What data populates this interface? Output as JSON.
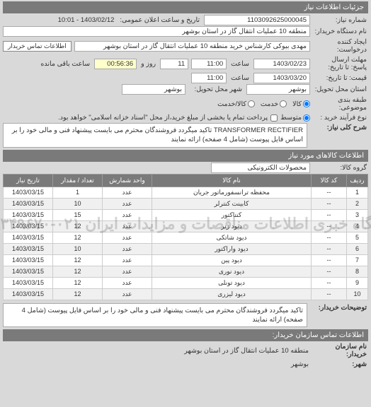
{
  "header": {
    "title": "جزئیات اطلاعات نیاز"
  },
  "top": {
    "req_no_label": "شماره نیاز:",
    "req_no": "1103092625000045",
    "announce_label": "تاریخ و ساعت اعلان عمومی:",
    "announce_value": "1403/02/12 - 10:01",
    "buyer_name_label": "نام دستگاه خریدار:",
    "buyer_name": "منطقه 10 عملیات انتقال گاز در استان بوشهر",
    "requester_label": "ایجاد کننده درخواست:",
    "requester": "مهدی بیوکی کارشناس خرید منطقه 10 عملیات انتقال گاز در استان بوشهر",
    "contact_btn": "اطلاعات تماس خریدار",
    "deadline_label": "مهلت ارسال پاسخ: تا تاریخ:",
    "deadline_date": "1403/02/23",
    "hour_label": "ساعت",
    "deadline_hour": "11:00",
    "days_rem": "11",
    "days_rem_label": "روز و",
    "time_rem": "00:56:36",
    "time_rem_label": "ساعت باقی مانده",
    "price_until_label": "قیمت: تا تاریخ:",
    "price_until_date": "1403/03/20",
    "price_until_hour": "11:00",
    "delivery_province_label": "استان محل تحویل:",
    "delivery_province": "بوشهر",
    "delivery_city_label": "شهر محل تحویل:",
    "delivery_city": "بوشهر",
    "pricing_label": "طبقه بندی موضوعی:",
    "radio_kala": "کالا",
    "radio_khedmat": "خدمت",
    "radio_both": "کالا/خدمت",
    "purchase_type_label": "نوع فرآیند خرید :",
    "radio_mid": "متوسط",
    "checkbox_text": "پرداخت تمام یا بخشی از مبلغ خرید،از محل \"اسناد خزانه اسلامی\" خواهد بود."
  },
  "desc": {
    "label": "شرح کلی نیاز:",
    "text": "TRANSFORMER RECTIFIER تاکید میگردد فروشندگان محترم می بایست پیشنهاد فنی و مالی خود را بر اساس فایل پیوست (شامل 4 صفحه) ارائه نمایند"
  },
  "items_section": {
    "title": "اطلاعات کالاهای مورد نیاز",
    "group_label": "گروه کالا:",
    "group_value": "محصولات الکترونیکی",
    "columns": [
      "ردیف",
      "کد کالا",
      "نام کالا",
      "واحد شمارش",
      "تعداد / مقدار",
      "تاریخ نیاز"
    ],
    "rows": [
      [
        "1",
        "--",
        "محفظه ترانسفورماتور جریان",
        "عدد",
        "1",
        "1403/03/15"
      ],
      [
        "2",
        "--",
        "کابینت کنترلر",
        "عدد",
        "10",
        "1403/03/15"
      ],
      [
        "3",
        "--",
        "کنتاکتور",
        "عدد",
        "15",
        "1403/03/15"
      ],
      [
        "4",
        "--",
        "دیود زنر",
        "عدد",
        "12",
        "1403/03/15"
      ],
      [
        "5",
        "--",
        "دیود شاتکی",
        "عدد",
        "12",
        "1403/03/15"
      ],
      [
        "6",
        "--",
        "دیود واراکتور",
        "عدد",
        "10",
        "1403/03/15"
      ],
      [
        "7",
        "--",
        "دیود پین",
        "عدد",
        "12",
        "1403/03/15"
      ],
      [
        "8",
        "--",
        "دیود نوری",
        "عدد",
        "12",
        "1403/03/15"
      ],
      [
        "9",
        "--",
        "دیود تونلی",
        "عدد",
        "12",
        "1403/03/15"
      ],
      [
        "10",
        "--",
        "دیود لیزری",
        "عدد",
        "12",
        "1403/03/15"
      ]
    ],
    "col_widths": [
      "30px",
      "50px",
      "auto",
      "70px",
      "70px",
      "70px"
    ],
    "watermark": "پایگاه خبری اطلاعات مناقصات و مزایدات ایران ۰۲۱-۸۸۳۴۹۶۷۰"
  },
  "footer": {
    "exp_label": "توضیحات خریدار:",
    "exp_text": "تاکید میگردد فروشندگان محترم می بایست پیشنهاد فنی و مالی خود را بر اساس فایل پیوست (شامل 4 صفحه) ارائه نمایند",
    "contact_title": "اطلاعات تماس سازمان خریدار:",
    "org_label": "نام سازمان خریدار:",
    "org_value": "منطقه 10 عملیات انتقال گاز در استان بوشهر",
    "city_label": "شهر:",
    "city_value": "بوشهر"
  }
}
